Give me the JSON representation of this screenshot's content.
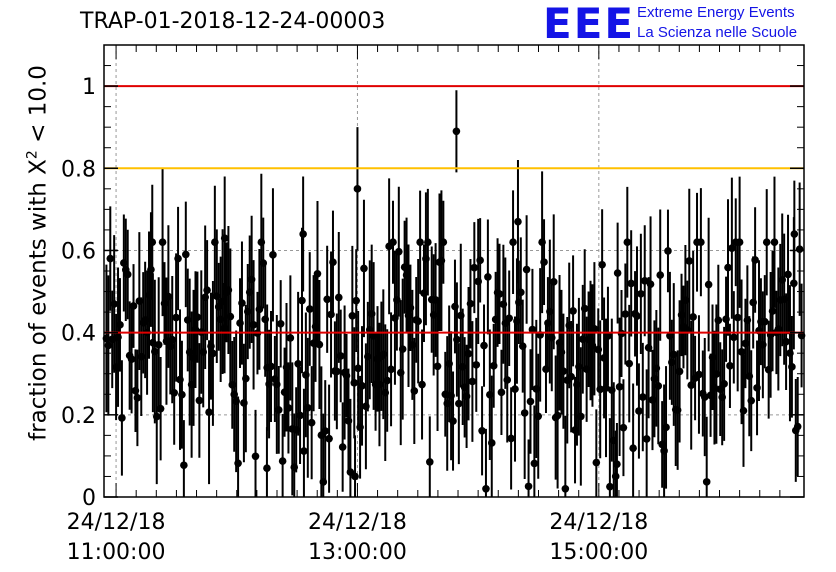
{
  "title": "TRAP-01-2018-12-24-00003",
  "logo": {
    "mark": "EEE",
    "line1": "Extreme Energy Events",
    "line2": "La Scienza nelle Scuole",
    "color": "#1414e6"
  },
  "chart_data": {
    "type": "scatter",
    "title": "TRAP-01-2018-12-24-00003",
    "ylabel": "fraction of events with χ² < 10.0",
    "ylabel_parts": {
      "prefix": "fraction of events with ",
      "symbol": "X",
      "sup": "2",
      "suffix": " < 10.0"
    },
    "xlabel": "",
    "x_unit": "hours since 24/12/18 00:00:00",
    "xlim": [
      10.9,
      16.7
    ],
    "ylim": [
      0,
      1.1
    ],
    "x_ticks": [
      {
        "value": 11,
        "date": "24/12/18",
        "time": "11:00:00"
      },
      {
        "value": 13,
        "date": "24/12/18",
        "time": "13:00:00"
      },
      {
        "value": 15,
        "date": "24/12/18",
        "time": "15:00:00"
      }
    ],
    "y_ticks": [
      0,
      0.2,
      0.4,
      0.6,
      0.8,
      1
    ],
    "y_tick_labels": [
      "0",
      "0.2",
      "0.4",
      "0.6",
      "0.8",
      "1"
    ],
    "grid": true,
    "reference_lines": [
      {
        "y": 1.0,
        "color": "#e00000"
      },
      {
        "y": 0.8,
        "color": "#ffc000"
      },
      {
        "y": 0.4,
        "color": "#e00000"
      }
    ],
    "points_color": "#000000",
    "n_points": 360,
    "highlight_points": [
      {
        "x": 13.0,
        "y": 0.75,
        "err": 0.15
      },
      {
        "x": 13.82,
        "y": 0.89,
        "err": 0.1
      },
      {
        "x": 14.33,
        "y": 0.67,
        "err": 0.15
      },
      {
        "x": 12.55,
        "y": 0.64,
        "err": 0.14
      },
      {
        "x": 11.3,
        "y": 0.62,
        "err": 0.14
      },
      {
        "x": 11.9,
        "y": 0.63,
        "err": 0.15
      },
      {
        "x": 16.62,
        "y": 0.64,
        "err": 0.13
      },
      {
        "x": 12.25,
        "y": 0.07,
        "err": 0.1
      },
      {
        "x": 12.98,
        "y": 0.05,
        "err": 0.1
      },
      {
        "x": 15.15,
        "y": 0.08,
        "err": 0.1
      }
    ]
  }
}
